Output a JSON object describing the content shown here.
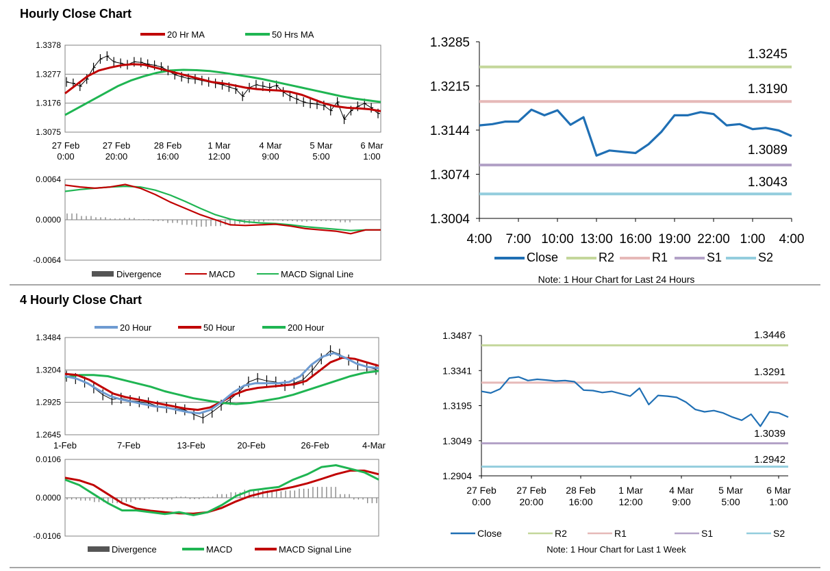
{
  "colors": {
    "ma20": "#c00000",
    "ma50": "#1fb552",
    "price": "#000000",
    "macd_red": "#c00000",
    "macd_green": "#1fb552",
    "divergence": "#7f7f7f",
    "close": "#1f6fb4",
    "r2": "#c4d79b",
    "r1": "#e6b9b8",
    "s1": "#b3a2c7",
    "s2": "#93cddd",
    "ma_blue": "#6e9bd1",
    "ma_red4": "#c00000",
    "ma_green4": "#1fb552"
  },
  "sections": {
    "hourly": "Hourly Close Chart",
    "four_hourly": "4 Hourly Close Chart"
  },
  "chart_data": [
    {
      "id": "hourly_price",
      "type": "line",
      "legend": [
        "20 Hr MA",
        "50 Hrs MA"
      ],
      "x_ticks": [
        "27 Feb\n0:00",
        "27 Feb\n20:00",
        "28 Feb\n16:00",
        "1 Mar\n12:00",
        "4 Mar\n9:00",
        "5 Mar\n5:00",
        "6 Mar\n1:00"
      ],
      "y_ticks": [
        "1.3378",
        "1.3277",
        "1.3176",
        "1.3075"
      ],
      "ylim": [
        1.3075,
        1.3378
      ],
      "price": [
        1.325,
        1.3245,
        1.3235,
        1.326,
        1.33,
        1.333,
        1.334,
        1.332,
        1.3315,
        1.331,
        1.332,
        1.3318,
        1.3312,
        1.3308,
        1.3302,
        1.329,
        1.3275,
        1.3268,
        1.3262,
        1.326,
        1.3255,
        1.325,
        1.3245,
        1.324,
        1.3232,
        1.3225,
        1.32,
        1.323,
        1.324,
        1.3235,
        1.323,
        1.3238,
        1.3215,
        1.32,
        1.319,
        1.318,
        1.3175,
        1.3172,
        1.3168,
        1.315,
        1.318,
        1.312,
        1.315,
        1.3165,
        1.3175,
        1.316,
        1.314
      ],
      "series": [
        {
          "name": "20 Hr MA",
          "values": [
            1.321,
            1.324,
            1.327,
            1.329,
            1.33,
            1.3308,
            1.3312,
            1.331,
            1.33,
            1.329,
            1.328,
            1.327,
            1.326,
            1.325,
            1.3245,
            1.3238,
            1.323,
            1.3225,
            1.3222,
            1.322,
            1.3215,
            1.3205,
            1.319,
            1.3175,
            1.3165,
            1.316,
            1.3158,
            1.3155,
            1.3148
          ]
        },
        {
          "name": "50 Hrs MA",
          "values": [
            1.3135,
            1.316,
            1.3185,
            1.321,
            1.3235,
            1.3255,
            1.327,
            1.3282,
            1.329,
            1.3292,
            1.3291,
            1.3288,
            1.3282,
            1.3275,
            1.3268,
            1.326,
            1.325,
            1.324,
            1.323,
            1.322,
            1.321,
            1.32,
            1.3192,
            1.3186,
            1.318
          ]
        }
      ]
    },
    {
      "id": "hourly_macd",
      "type": "line",
      "legend": [
        "Divergence",
        "MACD",
        "MACD Signal Line"
      ],
      "y_ticks": [
        "0.0064",
        "0.0000",
        "-0.0064"
      ],
      "ylim": [
        -0.0064,
        0.0064
      ],
      "series": [
        {
          "name": "MACD",
          "values": [
            0.0055,
            0.0052,
            0.005,
            0.0052,
            0.0056,
            0.005,
            0.004,
            0.0028,
            0.0018,
            0.0008,
            0.0,
            -0.0008,
            -0.0009,
            -0.0008,
            -0.0007,
            -0.001,
            -0.0014,
            -0.0016,
            -0.0018,
            -0.0022,
            -0.0016,
            -0.0016
          ]
        },
        {
          "name": "MACD Signal Line",
          "values": [
            0.0045,
            0.0048,
            0.005,
            0.0052,
            0.0053,
            0.0052,
            0.0047,
            0.0039,
            0.0029,
            0.0018,
            0.0008,
            0.0001,
            -0.0003,
            -0.0005,
            -0.0006,
            -0.0008,
            -0.0011,
            -0.0013,
            -0.0015,
            -0.0017,
            -0.0016,
            -0.0016
          ]
        }
      ],
      "divergence": [
        0.001,
        0.0006,
        0.0004,
        0.0002,
        0.0003,
        0.0001,
        -0.0002,
        -0.0005,
        -0.0008,
        -0.0011,
        -0.001,
        -0.0008,
        -0.0006,
        -0.0003,
        -0.0001,
        -0.0002,
        -0.0003,
        -0.0002,
        -0.0002,
        -0.0004,
        0.0,
        0.0
      ]
    },
    {
      "id": "hourly_close_24h",
      "type": "line",
      "x_ticks": [
        "4:00",
        "7:00",
        "10:00",
        "13:00",
        "16:00",
        "19:00",
        "22:00",
        "1:00",
        "4:00"
      ],
      "y_ticks": [
        "1.3285",
        "1.3215",
        "1.3144",
        "1.3074",
        "1.3004"
      ],
      "ylim": [
        1.3004,
        1.3285
      ],
      "close": [
        1.3152,
        1.3154,
        1.3158,
        1.3158,
        1.3177,
        1.3168,
        1.3176,
        1.3153,
        1.3165,
        1.3104,
        1.3112,
        1.311,
        1.3108,
        1.3122,
        1.3142,
        1.3168,
        1.3168,
        1.3173,
        1.317,
        1.3152,
        1.3154,
        1.3146,
        1.3148,
        1.3144,
        1.3135
      ],
      "levels": [
        {
          "name": "R2",
          "value": 1.3245,
          "label": "1.3245"
        },
        {
          "name": "R1",
          "value": 1.319,
          "label": "1.3190"
        },
        {
          "name": "S1",
          "value": 1.3089,
          "label": "1.3089"
        },
        {
          "name": "S2",
          "value": 1.3043,
          "label": "1.3043"
        }
      ],
      "legend": [
        "Close",
        "R2",
        "R1",
        "S1",
        "S2"
      ],
      "note": "Note: 1 Hour Chart for Last 24 Hours"
    },
    {
      "id": "four_hourly_price",
      "type": "line",
      "legend": [
        "20 Hour",
        "50 Hour",
        "200 Hour"
      ],
      "x_ticks": [
        "1-Feb",
        "7-Feb",
        "13-Feb",
        "20-Feb",
        "26-Feb",
        "4-Mar"
      ],
      "y_ticks": [
        "1.3484",
        "1.3204",
        "1.2925",
        "1.2645"
      ],
      "ylim": [
        1.2645,
        1.3484
      ],
      "price": [
        1.315,
        1.313,
        1.31,
        1.305,
        1.299,
        1.295,
        1.296,
        1.294,
        1.293,
        1.292,
        1.289,
        1.288,
        1.287,
        1.286,
        1.282,
        1.279,
        1.284,
        1.29,
        1.295,
        1.302,
        1.31,
        1.313,
        1.311,
        1.31,
        1.307,
        1.309,
        1.312,
        1.32,
        1.33,
        1.337,
        1.334,
        1.329,
        1.325,
        1.323,
        1.321
      ],
      "series": [
        {
          "name": "20 Hour",
          "values": [
            1.315,
            1.313,
            1.309,
            1.303,
            1.298,
            1.295,
            1.293,
            1.291,
            1.289,
            1.288,
            1.286,
            1.284,
            1.283,
            1.286,
            1.293,
            1.301,
            1.307,
            1.309,
            1.309,
            1.309,
            1.31,
            1.315,
            1.325,
            1.332,
            1.335,
            1.331,
            1.326,
            1.323,
            1.322
          ]
        },
        {
          "name": "50 Hour",
          "values": [
            1.317,
            1.316,
            1.312,
            1.306,
            1.3,
            1.297,
            1.295,
            1.293,
            1.291,
            1.289,
            1.287,
            1.286,
            1.288,
            1.293,
            1.299,
            1.303,
            1.305,
            1.306,
            1.307,
            1.308,
            1.311,
            1.319,
            1.327,
            1.331,
            1.33,
            1.327,
            1.324
          ]
        },
        {
          "name": "200 Hour",
          "values": [
            1.314,
            1.316,
            1.316,
            1.315,
            1.312,
            1.309,
            1.306,
            1.302,
            1.299,
            1.296,
            1.294,
            1.292,
            1.291,
            1.292,
            1.294,
            1.296,
            1.299,
            1.303,
            1.307,
            1.311,
            1.315,
            1.318,
            1.3195
          ]
        }
      ]
    },
    {
      "id": "four_hourly_macd",
      "type": "line",
      "legend": [
        "Divergence",
        "MACD",
        "MACD Signal Line"
      ],
      "y_ticks": [
        "0.0106",
        "0.0000",
        "-0.0106"
      ],
      "ylim": [
        -0.0106,
        0.0106
      ],
      "series": [
        {
          "name": "MACD",
          "values": [
            0.005,
            0.0035,
            0.001,
            -0.0015,
            -0.0035,
            -0.0035,
            -0.004,
            -0.0045,
            -0.004,
            -0.0048,
            -0.004,
            -0.002,
            0.0005,
            0.002,
            0.0025,
            0.003,
            0.005,
            0.0065,
            0.0085,
            0.009,
            0.008,
            0.007,
            0.005
          ]
        },
        {
          "name": "MACD Signal Line",
          "values": [
            0.0055,
            0.0048,
            0.0035,
            0.001,
            -0.0015,
            -0.003,
            -0.0036,
            -0.004,
            -0.0043,
            -0.0044,
            -0.004,
            -0.0028,
            -0.001,
            0.0005,
            0.0015,
            0.0022,
            0.003,
            0.004,
            0.0052,
            0.0065,
            0.0075,
            0.0075,
            0.0065
          ]
        }
      ],
      "divergence": [
        -0.0005,
        -0.0008,
        -0.0012,
        -0.0015,
        -0.0012,
        -0.0006,
        -0.0003,
        -0.0005,
        0.0003,
        -0.0004,
        0.0003,
        0.001,
        0.0015,
        0.0022,
        0.002,
        0.0018,
        0.002,
        0.0025,
        0.003,
        0.003,
        0.001,
        -0.0005,
        -0.0015
      ]
    },
    {
      "id": "four_hourly_close_week",
      "type": "line",
      "x_ticks": [
        "27 Feb\n0:00",
        "27 Feb\n20:00",
        "28 Feb\n16:00",
        "1 Mar\n12:00",
        "4 Mar\n9:00",
        "5 Mar\n5:00",
        "6 Mar\n1:00"
      ],
      "y_ticks": [
        "1.3487",
        "1.3341",
        "1.3195",
        "1.3049",
        "1.2904"
      ],
      "ylim": [
        1.2904,
        1.3487
      ],
      "close": [
        1.3255,
        1.3248,
        1.3265,
        1.331,
        1.3315,
        1.33,
        1.3305,
        1.3302,
        1.3298,
        1.33,
        1.3295,
        1.326,
        1.3258,
        1.325,
        1.3255,
        1.3245,
        1.3235,
        1.3268,
        1.32,
        1.3238,
        1.3235,
        1.323,
        1.321,
        1.318,
        1.317,
        1.3175,
        1.3165,
        1.3148,
        1.3135,
        1.316,
        1.311,
        1.317,
        1.3165,
        1.3148
      ],
      "levels": [
        {
          "name": "R2",
          "value": 1.3446,
          "label": "1.3446"
        },
        {
          "name": "R1",
          "value": 1.3291,
          "label": "1.3291"
        },
        {
          "name": "S1",
          "value": 1.3039,
          "label": "1.3039"
        },
        {
          "name": "S2",
          "value": 1.2942,
          "label": "1.2942"
        }
      ],
      "legend": [
        "Close",
        "R2",
        "R1",
        "S1",
        "S2"
      ],
      "note": "Note: 1 Hour Chart for Last 1 Week"
    }
  ]
}
